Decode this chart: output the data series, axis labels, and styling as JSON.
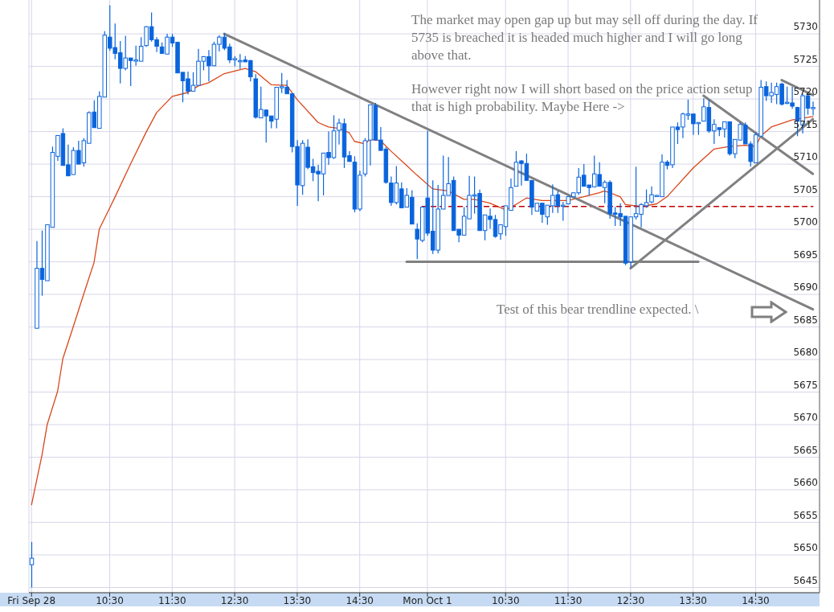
{
  "chart_data": {
    "type": "candlestick",
    "color": "#0a64dc",
    "categories": [
      "Fri Sep 28",
      null,
      null,
      null,
      null,
      null,
      null,
      null,
      null,
      null,
      null,
      null,
      null,
      null,
      null,
      "10:30",
      null,
      null,
      null,
      null,
      null,
      null,
      null,
      null,
      null,
      null,
      null,
      "11:30",
      null,
      null,
      null,
      null,
      null,
      null,
      null,
      null,
      null,
      null,
      null,
      "12:30",
      null,
      null,
      null,
      null,
      null,
      null,
      null,
      null,
      null,
      null,
      null,
      "13:30",
      null,
      null,
      null,
      null,
      null,
      null,
      null,
      null,
      null,
      null,
      null,
      "14:30",
      null,
      null,
      null,
      null,
      null,
      null,
      null,
      null,
      null,
      null,
      null,
      null,
      "Mon Oct 1",
      null,
      null,
      null,
      null,
      null,
      null,
      null,
      null,
      null,
      null,
      null,
      null,
      null,
      null,
      "10:30",
      null,
      null,
      null,
      null,
      null,
      null,
      null,
      null,
      null,
      null,
      null,
      "11:30",
      null,
      null,
      null,
      null,
      null,
      null,
      null,
      null,
      null,
      null,
      null,
      "12:30",
      null,
      null,
      null,
      null,
      null,
      null,
      null,
      null,
      null,
      null,
      null,
      "13:30",
      null,
      null,
      null,
      null,
      null,
      null,
      null,
      null,
      null,
      null,
      null,
      "14:30",
      null,
      null,
      null,
      null,
      null,
      null,
      null,
      null,
      null,
      null,
      null
    ],
    "ohlc": [
      [
        5648.5,
        5652,
        5645,
        5649.5
      ],
      [
        5684.8,
        5698.2,
        5684.8,
        5694
      ],
      [
        5694,
        5699.8,
        5689.8,
        5692.3
      ],
      [
        5692.1,
        5700.7,
        5692.1,
        5700.7
      ],
      [
        5700.3,
        5712.7,
        5700.3,
        5711.8
      ],
      [
        5711.2,
        5714.4,
        5710.5,
        5714.4
      ],
      [
        5714.7,
        5715.5,
        5709.8,
        5709.8
      ],
      [
        5709.9,
        5713,
        5708.2,
        5708.2
      ],
      [
        5708.4,
        5712.6,
        5708.4,
        5712.1
      ],
      [
        5712.1,
        5713.6,
        5710,
        5710
      ],
      [
        5710.2,
        5714,
        5709.6,
        5713.6
      ],
      [
        5713.2,
        5718.1,
        5713.2,
        5717.9
      ],
      [
        5718,
        5719.8,
        5715.6,
        5715.6
      ],
      [
        5715.5,
        5721.2,
        5715.5,
        5720.4
      ],
      [
        5720.3,
        5730.4,
        5720.3,
        5729.8
      ],
      [
        5729.5,
        5734.4,
        5727.4,
        5727.8
      ],
      [
        5727.9,
        5731.6,
        5726.1,
        5727
      ],
      [
        5727.1,
        5728.9,
        5722.4,
        5724.7
      ],
      [
        5724.7,
        5729.7,
        5724.4,
        5726.3
      ],
      [
        5726.3,
        5726.3,
        5722,
        5725.9
      ],
      [
        5725.9,
        5728.2,
        5725.1,
        5726
      ],
      [
        5725.8,
        5729.5,
        5725.8,
        5728.1
      ],
      [
        5728.2,
        5731.2,
        5728,
        5731.1
      ],
      [
        5731.1,
        5733.3,
        5728.8,
        5729.1
      ],
      [
        5729.1,
        5729.5,
        5727.2,
        5728.1
      ],
      [
        5728,
        5728.7,
        5727,
        5727
      ],
      [
        5726.9,
        5730,
        5726.9,
        5729.5
      ],
      [
        5729.5,
        5730,
        5728,
        5728.6
      ],
      [
        5728.7,
        5728.8,
        5724,
        5724
      ],
      [
        5724.1,
        5724.1,
        5719.5,
        5722.8
      ],
      [
        5723.1,
        5724.2,
        5720.7,
        5721.2
      ],
      [
        5721.2,
        5724.1,
        5721.2,
        5722.1
      ],
      [
        5722.1,
        5727.7,
        5722.1,
        5725.8
      ],
      [
        5725.8,
        5726.6,
        5724.4,
        5726.5
      ],
      [
        5726.5,
        5727.5,
        5722.7,
        5725.1
      ],
      [
        5725.1,
        5728.8,
        5725.1,
        5728.4
      ],
      [
        5728.4,
        5729.8,
        5727.3,
        5729.5
      ],
      [
        5729.5,
        5730.1,
        5727.5,
        5727.8
      ],
      [
        5728,
        5728.5,
        5725.5,
        5726
      ],
      [
        5726.1,
        5726.6,
        5725,
        5726.2
      ],
      [
        5725.8,
        5726.9,
        5724.6,
        5725.9
      ],
      [
        5726,
        5726.6,
        5725.7,
        5725.7
      ],
      [
        5725.9,
        5726,
        5722.7,
        5723.4
      ],
      [
        5723.1,
        5723.8,
        5717,
        5717.2
      ],
      [
        5717.1,
        5721.9,
        5717.1,
        5718.4
      ],
      [
        5718.3,
        5718.4,
        5713.3,
        5717.4
      ],
      [
        5717.4,
        5717.4,
        5715.5,
        5716.6
      ],
      [
        5716.9,
        5721.8,
        5715.5,
        5721.8
      ],
      [
        5721.8,
        5724,
        5720.9,
        5721.9
      ],
      [
        5721.8,
        5722.9,
        5720.8,
        5720.8
      ],
      [
        5720.8,
        5720.8,
        5711.8,
        5712.7
      ],
      [
        5712.7,
        5713.7,
        5703.6,
        5706.8
      ],
      [
        5706.7,
        5713.7,
        5705.3,
        5713.2
      ],
      [
        5712.6,
        5713.8,
        5709.2,
        5709.5
      ],
      [
        5709.6,
        5710.8,
        5707.4,
        5708.7
      ],
      [
        5708.9,
        5709.9,
        5704.3,
        5708.5
      ],
      [
        5708.5,
        5711.7,
        5705.2,
        5711.7
      ],
      [
        5711.8,
        5715,
        5709.9,
        5711
      ],
      [
        5711,
        5717.5,
        5710.8,
        5715.1
      ],
      [
        5715.2,
        5717,
        5713,
        5716.3
      ],
      [
        5716.2,
        5717,
        5709.4,
        5711.1
      ],
      [
        5711.3,
        5712,
        5710.4,
        5710.4
      ],
      [
        5710.3,
        5711.2,
        5702.6,
        5703.1
      ],
      [
        5703.1,
        5709,
        5702.8,
        5708.3
      ],
      [
        5708.5,
        5714,
        5708.1,
        5713.6
      ],
      [
        5713.7,
        5719.1,
        5709.8,
        5719.1
      ],
      [
        5719,
        5719.4,
        5713.7,
        5713.7
      ],
      [
        5713.7,
        5715.7,
        5712.1,
        5712.1
      ],
      [
        5712.3,
        5712.6,
        5707,
        5707.2
      ],
      [
        5707.1,
        5708.1,
        5703.6,
        5704.1
      ],
      [
        5704.1,
        5709.7,
        5703.8,
        5707.1
      ],
      [
        5706.2,
        5707.2,
        5703.3,
        5703.3
      ],
      [
        5703.4,
        5706.3,
        5703.4,
        5705.2
      ],
      [
        5704.9,
        5706,
        5700.8,
        5700.8
      ],
      [
        5700,
        5700.9,
        5695.4,
        5698.5
      ],
      [
        5698.3,
        5703.4,
        5698,
        5703.4
      ],
      [
        5704.8,
        5715.1,
        5699,
        5699.4
      ],
      [
        5699.7,
        5707.5,
        5696.2,
        5696.8
      ],
      [
        5696.8,
        5706.8,
        5696.3,
        5703.1
      ],
      [
        5703.1,
        5711.3,
        5703.1,
        5705.2
      ],
      [
        5705.2,
        5711.1,
        5705.2,
        5707
      ],
      [
        5707.5,
        5708.1,
        5699.8,
        5699.8
      ],
      [
        5700,
        5700,
        5698,
        5699.1
      ],
      [
        5699.1,
        5703.4,
        5699.1,
        5702
      ],
      [
        5701.6,
        5708.2,
        5701.6,
        5705.2
      ],
      [
        5705.2,
        5708.1,
        5702.4,
        5705.3
      ],
      [
        5705.5,
        5706.1,
        5699.8,
        5699.8
      ],
      [
        5699.8,
        5702.2,
        5698.3,
        5702.2
      ],
      [
        5702,
        5703.2,
        5700.1,
        5701.5
      ],
      [
        5701.5,
        5702.2,
        5698.7,
        5698.9
      ],
      [
        5699.3,
        5700.7,
        5698.4,
        5700.7
      ],
      [
        5700.4,
        5703.6,
        5699,
        5703.6
      ],
      [
        5702.9,
        5707.8,
        5702.9,
        5706.4
      ],
      [
        5706.6,
        5712,
        5706.6,
        5710.3
      ],
      [
        5710.5,
        5710.6,
        5706.7,
        5710.1
      ],
      [
        5710.1,
        5711.6,
        5707.5,
        5707.5
      ],
      [
        5707.5,
        5707.5,
        5702.2,
        5703.4
      ],
      [
        5702.8,
        5704,
        5702.8,
        5704
      ],
      [
        5704,
        5704,
        5701,
        5702.3
      ],
      [
        5701.9,
        5703.7,
        5700.7,
        5703.7
      ],
      [
        5703.6,
        5706.9,
        5702.5,
        5705.2
      ],
      [
        5705.3,
        5705.9,
        5702.5,
        5703.6
      ],
      [
        5703.6,
        5704.2,
        5701.3,
        5703.7
      ],
      [
        5703.9,
        5705,
        5703.8,
        5705
      ],
      [
        5705,
        5705.6,
        5705,
        5705.6
      ],
      [
        5705.6,
        5709.4,
        5705.3,
        5708
      ],
      [
        5708.3,
        5710,
        5706.6,
        5706.6
      ],
      [
        5706.8,
        5706.8,
        5705.2,
        5706.4
      ],
      [
        5706.5,
        5711.3,
        5706.5,
        5708.5
      ],
      [
        5708.4,
        5710.3,
        5706.6,
        5706.6
      ],
      [
        5706.4,
        5707.5,
        5704,
        5707.2
      ],
      [
        5707.2,
        5707.5,
        5701.6,
        5702.4
      ],
      [
        5702.5,
        5703.4,
        5700.5,
        5702.4
      ],
      [
        5702.4,
        5704,
        5700.5,
        5701.9
      ],
      [
        5702,
        5702,
        5694.5,
        5694.8
      ],
      [
        5695,
        5701.9,
        5694.1,
        5701.9
      ],
      [
        5701.9,
        5709.6,
        5701.5,
        5702.4
      ],
      [
        5702.3,
        5704,
        5700.3,
        5703.8
      ],
      [
        5703.6,
        5706.1,
        5703.3,
        5704.1
      ],
      [
        5704.2,
        5706.6,
        5704,
        5705.3
      ],
      [
        5705.1,
        5705.3,
        5705,
        5705.2
      ],
      [
        5705,
        5711.5,
        5705,
        5710.3
      ],
      [
        5710.3,
        5710.6,
        5709.2,
        5709.8
      ],
      [
        5709.9,
        5715.7,
        5709.4,
        5715.7
      ],
      [
        5715.7,
        5716.4,
        5713.1,
        5715.3
      ],
      [
        5715.7,
        5717.9,
        5714,
        5717.7
      ],
      [
        5717.6,
        5719.9,
        5716.8,
        5717.7
      ],
      [
        5717.7,
        5717.7,
        5714.5,
        5716.2
      ],
      [
        5716.3,
        5716.4,
        5714.5,
        5716.4
      ],
      [
        5716.6,
        5720.1,
        5716.6,
        5718.8
      ],
      [
        5718.7,
        5719.9,
        5714.8,
        5715.1
      ],
      [
        5715.1,
        5716.9,
        5713.1,
        5716.1
      ],
      [
        5715.6,
        5715.6,
        5714.3,
        5715.3
      ],
      [
        5715.4,
        5716.5,
        5714.1,
        5716.5
      ],
      [
        5716.5,
        5716.5,
        5711.3,
        5711.6
      ],
      [
        5711.6,
        5713.8,
        5710.9,
        5713.8
      ],
      [
        5713.7,
        5716.4,
        5713.7,
        5716.1
      ],
      [
        5716,
        5716.4,
        5713.1,
        5713.1
      ],
      [
        5713.1,
        5713.5,
        5709.6,
        5710.4
      ],
      [
        5710.2,
        5714.9,
        5710.2,
        5714.5
      ],
      [
        5714.3,
        5722.9,
        5714.3,
        5721.8
      ],
      [
        5721.9,
        5722.7,
        5719.7,
        5720.5
      ],
      [
        5720.5,
        5722.5,
        5719.4,
        5721
      ],
      [
        5720.7,
        5722.5,
        5719.2,
        5721.9
      ],
      [
        5722.3,
        5722.5,
        5719,
        5719.2
      ],
      [
        5719.4,
        5721.9,
        5719.2,
        5719.5
      ],
      [
        5719.4,
        5721.9,
        5718.5,
        5718.9
      ],
      [
        5718.7,
        5718.8,
        5714.3,
        5716.6
      ],
      [
        5716,
        5720.8,
        5714.7,
        5720.5
      ],
      [
        5720.5,
        5720.8,
        5717.6,
        5718.6
      ],
      [
        5718.6,
        5719.6,
        5717.5,
        5718.7
      ]
    ],
    "series": [
      {
        "type": "line",
        "color": "#d9461a",
        "values": [
          5657.7,
          null,
          5665.3,
          5670,
          null,
          5675.1,
          5680.1,
          null,
          5685,
          null,
          5690,
          null,
          5694.9,
          5700,
          null,
          null,
          5704.9,
          null,
          null,
          5710,
          null,
          null,
          5714.9,
          null,
          5717.9,
          null,
          null,
          5720.4,
          null,
          null,
          5721,
          null,
          5722,
          null,
          5722.5,
          null,
          null,
          5723.9,
          null,
          null,
          null,
          5724.7,
          null,
          5724.2,
          null,
          null,
          5722.2,
          null,
          null,
          5722.1,
          null,
          5719.9,
          null,
          null,
          null,
          5716.4,
          null,
          5715.7,
          null,
          5715.5,
          null,
          5714.8,
          5713.5,
          null,
          5713.1,
          5713.8,
          null,
          5713.6,
          null,
          5712,
          null,
          null,
          5709.8,
          null,
          5708.3,
          null,
          null,
          5706.2,
          null,
          null,
          5705.9,
          null,
          null,
          5704.6,
          null,
          5704.6,
          null,
          null,
          5704,
          null,
          null,
          5703,
          null,
          5703.8,
          null,
          5704.8,
          null,
          null,
          5704.4,
          null,
          null,
          null,
          null,
          5704.4,
          null,
          null,
          5705,
          null,
          null,
          5705.6,
          5705.9,
          null,
          null,
          5705,
          5703.8,
          null,
          null,
          5703.5,
          null,
          null,
          5703.9,
          null,
          5705,
          null,
          null,
          null,
          null,
          5709.4,
          null,
          null,
          null,
          5712.3,
          null,
          null,
          5712.7,
          null,
          null,
          5712.9,
          null,
          5712.7,
          5714.3,
          null,
          5715.7,
          null,
          null,
          null,
          5716.8,
          null,
          null,
          null,
          5717.3
        ]
      },
      {
        "type": "line",
        "color": "#c00000",
        "line_style": "dashed",
        "values": [
          null,
          null,
          null,
          null,
          null,
          null,
          null,
          null,
          null,
          null,
          null,
          null,
          null,
          null,
          null,
          null,
          null,
          null,
          null,
          null,
          null,
          null,
          null,
          null,
          null,
          null,
          null,
          null,
          null,
          null,
          null,
          null,
          null,
          null,
          null,
          null,
          null,
          null,
          null,
          null,
          null,
          null,
          null,
          null,
          null,
          null,
          null,
          null,
          null,
          null,
          null,
          null,
          null,
          null,
          null,
          null,
          null,
          null,
          null,
          null,
          null,
          null,
          null,
          null,
          null,
          null,
          null,
          null,
          null,
          null,
          null,
          null,
          null,
          null,
          null,
          5703.5,
          null,
          null,
          null,
          null,
          null,
          null,
          null,
          null,
          null,
          null,
          null,
          null,
          null,
          null,
          null,
          null,
          null,
          null,
          null,
          null,
          null,
          null,
          null,
          null,
          null,
          null,
          null,
          null,
          null,
          null,
          null,
          null,
          null,
          null,
          null,
          null,
          null,
          null,
          null,
          null,
          null,
          null,
          null,
          null,
          null,
          null,
          null,
          null,
          null,
          null,
          null,
          null,
          null,
          null,
          null,
          null,
          null,
          null,
          null,
          null,
          null,
          null,
          null,
          null,
          null,
          null,
          null,
          null,
          null,
          null,
          null,
          null,
          null,
          null,
          5703.5
        ]
      },
      {
        "type": "line",
        "color": "#808080",
        "values": [
          null,
          null,
          null,
          null,
          null,
          null,
          null,
          null,
          null,
          null,
          null,
          null,
          null,
          null,
          null,
          null,
          null,
          null,
          null,
          null,
          null,
          null,
          null,
          null,
          null,
          null,
          null,
          null,
          null,
          null,
          null,
          null,
          null,
          null,
          null,
          null,
          null,
          5730,
          null,
          null,
          null,
          null,
          null,
          null,
          null,
          null,
          null,
          null,
          null,
          null,
          null,
          null,
          null,
          null,
          null,
          null,
          null,
          null,
          null,
          null,
          null,
          null,
          null,
          null,
          null,
          null,
          null,
          null,
          null,
          null,
          null,
          null,
          null,
          null,
          null,
          null,
          null,
          null,
          null,
          null,
          null,
          null,
          null,
          null,
          null,
          null,
          null,
          null,
          null,
          null,
          null,
          null,
          null,
          null,
          null,
          null,
          null,
          null,
          null,
          null,
          null,
          null,
          null,
          null,
          null,
          null,
          null,
          null,
          null,
          null,
          null,
          null,
          null,
          null,
          null,
          null,
          null,
          null,
          null,
          null,
          null,
          null,
          null,
          null,
          null,
          null,
          null,
          null,
          null,
          null,
          null,
          null,
          null,
          null,
          null,
          null,
          null,
          null,
          null,
          null,
          null,
          null,
          null,
          null,
          null,
          null,
          null,
          null,
          null,
          null,
          5687.7
        ]
      },
      {
        "type": "line",
        "color": "#808080",
        "values": [
          null,
          null,
          null,
          null,
          null,
          null,
          null,
          null,
          null,
          null,
          null,
          null,
          null,
          null,
          null,
          null,
          null,
          null,
          null,
          null,
          null,
          null,
          null,
          null,
          null,
          null,
          null,
          null,
          null,
          null,
          null,
          null,
          null,
          null,
          null,
          null,
          null,
          null,
          null,
          null,
          null,
          null,
          null,
          null,
          null,
          null,
          null,
          null,
          null,
          null,
          null,
          null,
          null,
          null,
          null,
          null,
          null,
          null,
          null,
          null,
          null,
          null,
          null,
          null,
          null,
          null,
          null,
          null,
          null,
          null,
          null,
          null,
          5695,
          null,
          null,
          null,
          null,
          null,
          null,
          null,
          null,
          null,
          null,
          null,
          null,
          null,
          null,
          null,
          null,
          null,
          null,
          null,
          null,
          null,
          null,
          null,
          null,
          null,
          null,
          null,
          null,
          null,
          null,
          null,
          null,
          null,
          null,
          null,
          null,
          null,
          null,
          null,
          null,
          null,
          null,
          null,
          null,
          null,
          null,
          null,
          null,
          null,
          null,
          null,
          null,
          null,
          null,
          null,
          5695,
          null,
          null,
          null,
          null,
          null,
          null,
          null,
          null,
          null,
          null,
          null,
          null,
          null,
          null,
          null,
          null,
          null,
          null,
          null,
          null,
          null,
          null
        ]
      },
      {
        "type": "line",
        "color": "#808080",
        "values": [
          null,
          null,
          null,
          null,
          null,
          null,
          null,
          null,
          null,
          null,
          null,
          null,
          null,
          null,
          null,
          null,
          null,
          null,
          null,
          null,
          null,
          null,
          null,
          null,
          null,
          null,
          null,
          null,
          null,
          null,
          null,
          null,
          null,
          null,
          null,
          null,
          null,
          null,
          null,
          null,
          null,
          null,
          null,
          null,
          null,
          null,
          null,
          null,
          null,
          null,
          null,
          null,
          null,
          null,
          null,
          null,
          null,
          null,
          null,
          null,
          null,
          null,
          null,
          null,
          null,
          null,
          null,
          null,
          null,
          null,
          null,
          null,
          null,
          null,
          null,
          null,
          null,
          null,
          null,
          null,
          null,
          null,
          null,
          null,
          null,
          null,
          null,
          null,
          null,
          null,
          null,
          null,
          null,
          null,
          null,
          null,
          null,
          null,
          null,
          null,
          null,
          null,
          null,
          null,
          null,
          null,
          null,
          null,
          null,
          null,
          null,
          null,
          null,
          null,
          null,
          null,
          null,
          null,
          null,
          null,
          null,
          null,
          null,
          null,
          null,
          null,
          null,
          null,
          null,
          5720.5,
          null,
          null,
          null,
          null,
          null,
          null,
          null,
          null,
          null,
          null,
          null,
          null,
          null,
          null,
          null,
          null,
          null,
          null,
          null,
          null,
          5708.5
        ]
      },
      {
        "type": "line",
        "color": "#808080",
        "values": [
          null,
          null,
          null,
          null,
          null,
          null,
          null,
          null,
          null,
          null,
          null,
          null,
          null,
          null,
          null,
          null,
          null,
          null,
          null,
          null,
          null,
          null,
          null,
          null,
          null,
          null,
          null,
          null,
          null,
          null,
          null,
          null,
          null,
          null,
          null,
          null,
          null,
          null,
          null,
          null,
          null,
          null,
          null,
          null,
          null,
          null,
          null,
          null,
          null,
          null,
          null,
          null,
          null,
          null,
          null,
          null,
          null,
          null,
          null,
          null,
          null,
          null,
          null,
          null,
          null,
          null,
          null,
          null,
          null,
          null,
          null,
          null,
          null,
          null,
          null,
          null,
          null,
          null,
          null,
          null,
          null,
          null,
          null,
          null,
          null,
          null,
          null,
          null,
          null,
          null,
          null,
          null,
          null,
          null,
          null,
          null,
          null,
          null,
          null,
          null,
          null,
          null,
          null,
          null,
          null,
          null,
          null,
          null,
          null,
          null,
          null,
          null,
          null,
          null,
          null,
          5694,
          null,
          null,
          null,
          null,
          null,
          null,
          null,
          null,
          null,
          null,
          null,
          null,
          null,
          null,
          null,
          null,
          null,
          null,
          null,
          null,
          null,
          null,
          null,
          null,
          null,
          null,
          null,
          null,
          null,
          null,
          null,
          null,
          null,
          null,
          5716.9
        ]
      },
      {
        "type": "line",
        "color": "#808080",
        "values": [
          null,
          null,
          null,
          null,
          null,
          null,
          null,
          null,
          null,
          null,
          null,
          null,
          null,
          null,
          null,
          null,
          null,
          null,
          null,
          null,
          null,
          null,
          null,
          null,
          null,
          null,
          null,
          null,
          null,
          null,
          null,
          null,
          null,
          null,
          null,
          null,
          null,
          null,
          null,
          null,
          null,
          null,
          null,
          null,
          null,
          null,
          null,
          null,
          null,
          null,
          null,
          null,
          null,
          null,
          null,
          null,
          null,
          null,
          null,
          null,
          null,
          null,
          null,
          null,
          null,
          null,
          null,
          null,
          null,
          null,
          null,
          null,
          null,
          null,
          null,
          null,
          null,
          null,
          null,
          null,
          null,
          null,
          null,
          null,
          null,
          null,
          null,
          null,
          null,
          null,
          null,
          null,
          null,
          null,
          null,
          null,
          null,
          null,
          null,
          null,
          null,
          null,
          null,
          null,
          null,
          null,
          null,
          null,
          null,
          null,
          null,
          null,
          null,
          null,
          null,
          null,
          null,
          null,
          null,
          null,
          null,
          null,
          null,
          null,
          null,
          null,
          null,
          null,
          null,
          null,
          null,
          null,
          null,
          null,
          null,
          null,
          null,
          null,
          null,
          null,
          null,
          null,
          null,
          null,
          5722.9,
          null,
          null,
          null,
          null,
          null,
          5720.6
        ]
      }
    ],
    "ylim": [
      5644.2,
      5735.2
    ],
    "yticks": [
      5645,
      5650,
      5655,
      5660,
      5665,
      5670,
      5675,
      5680,
      5685,
      5690,
      5695,
      5700,
      5705,
      5710,
      5715,
      5720,
      5725,
      5730
    ],
    "grid": true,
    "annotations": [
      "The market may open gap up but may sell off during the day. If 5735 is breached it is headed much higher and I will go long above that.",
      "However right now I will short based on the price action setup that is high probability. Maybe Here ->",
      "Test of this bear trendline expected. \\"
    ]
  }
}
